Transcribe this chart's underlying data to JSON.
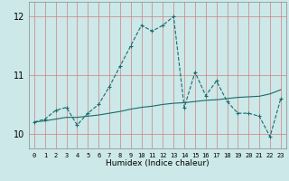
{
  "xlabel": "Humidex (Indice chaleur)",
  "bg_color": "#cce8e8",
  "grid_color": "#aacece",
  "line_color": "#1a6b6b",
  "x_data": [
    0,
    1,
    2,
    3,
    4,
    5,
    6,
    7,
    8,
    9,
    10,
    11,
    12,
    13,
    14,
    15,
    16,
    17,
    18,
    19,
    20,
    21,
    22,
    23
  ],
  "y_main": [
    10.2,
    10.25,
    10.4,
    10.45,
    10.15,
    10.35,
    10.5,
    10.8,
    11.15,
    11.5,
    11.85,
    11.75,
    11.85,
    12.0,
    10.45,
    11.05,
    10.65,
    10.9,
    10.55,
    10.35,
    10.35,
    10.3,
    9.95,
    10.6
  ],
  "y_trend": [
    10.2,
    10.22,
    10.25,
    10.28,
    10.28,
    10.3,
    10.32,
    10.35,
    10.38,
    10.42,
    10.45,
    10.47,
    10.5,
    10.52,
    10.53,
    10.55,
    10.57,
    10.58,
    10.6,
    10.62,
    10.63,
    10.64,
    10.68,
    10.75
  ],
  "ylim": [
    9.75,
    12.25
  ],
  "xlim": [
    -0.5,
    23.5
  ],
  "yticks": [
    10,
    11,
    12
  ],
  "xticks": [
    0,
    1,
    2,
    3,
    4,
    5,
    6,
    7,
    8,
    9,
    10,
    11,
    12,
    13,
    14,
    15,
    16,
    17,
    18,
    19,
    20,
    21,
    22,
    23
  ]
}
